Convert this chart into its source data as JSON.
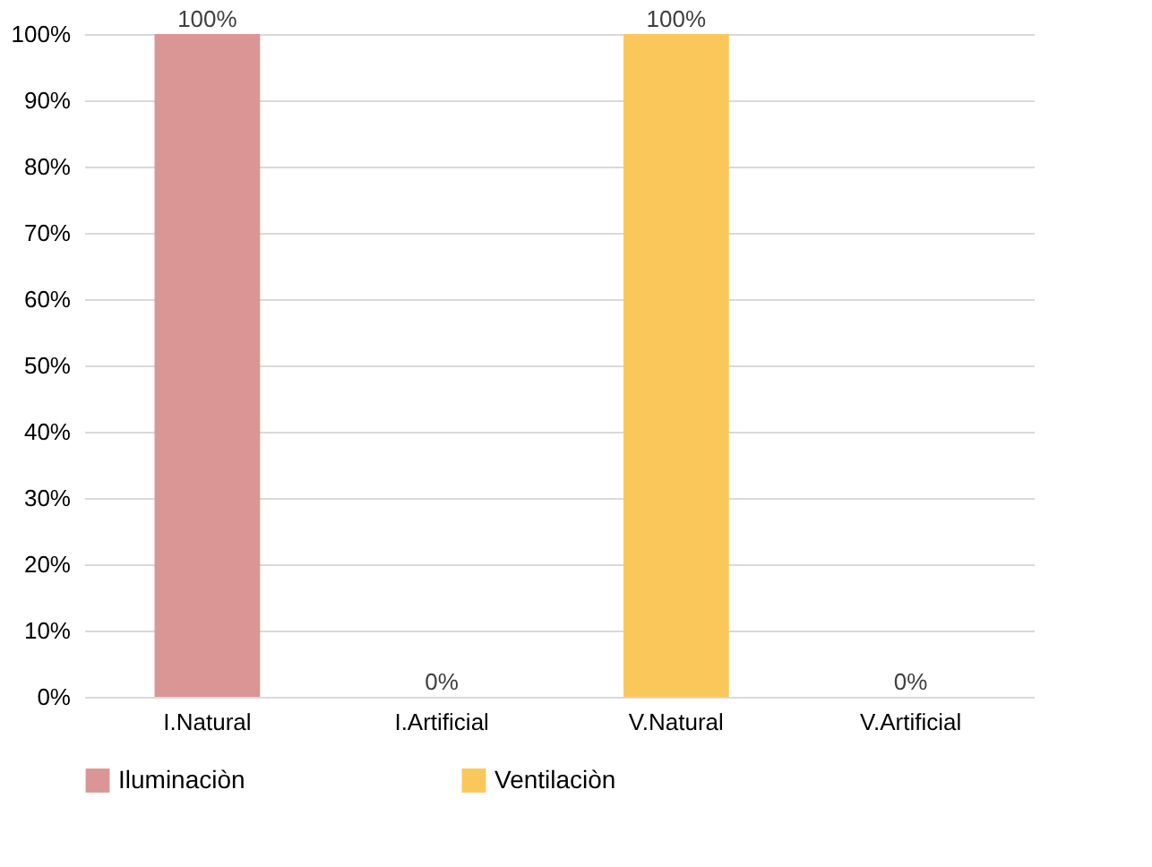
{
  "chart_data": {
    "type": "bar",
    "categories": [
      "I.Natural",
      "I.Artificial",
      "V.Natural",
      "V.Artificial"
    ],
    "series": [
      {
        "name": "Iluminaciòn",
        "color": "#d99694",
        "values": [
          100,
          0,
          null,
          null
        ],
        "value_labels": [
          "100%",
          "0%",
          null,
          null
        ]
      },
      {
        "name": "Ventilaciòn",
        "color": "#fac85a",
        "values": [
          null,
          null,
          100,
          0
        ],
        "value_labels": [
          null,
          null,
          "100%",
          "0%"
        ]
      }
    ],
    "ylim": [
      0,
      100
    ],
    "yticks": [
      {
        "value": 0,
        "label": "0%"
      },
      {
        "value": 10,
        "label": "10%"
      },
      {
        "value": 20,
        "label": "20%"
      },
      {
        "value": 30,
        "label": "30%"
      },
      {
        "value": 40,
        "label": "40%"
      },
      {
        "value": 50,
        "label": "50%"
      },
      {
        "value": 60,
        "label": "60%"
      },
      {
        "value": 70,
        "label": "70%"
      },
      {
        "value": 80,
        "label": "80%"
      },
      {
        "value": 90,
        "label": "90%"
      },
      {
        "value": 100,
        "label": "100%"
      }
    ],
    "grid": "y",
    "legend": "bottom"
  }
}
